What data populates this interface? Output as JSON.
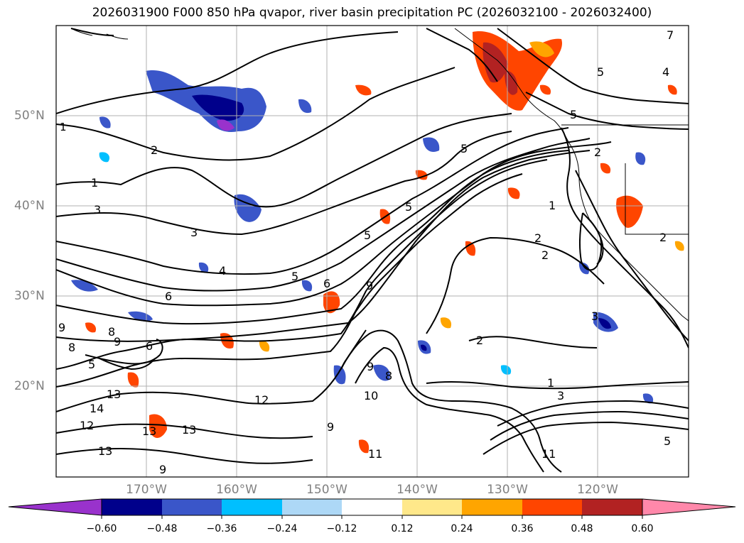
{
  "title": "2026031900 F000 850 hPa qvapor, river basin precipitation PC (2026032100 - 2026032400)",
  "map": {
    "lat_labels": [
      "50°N",
      "40°N",
      "30°N",
      "20°N"
    ],
    "lon_labels": [
      "170°W",
      "160°W",
      "150°W",
      "140°W",
      "130°W",
      "120°W"
    ],
    "contour_labels": [
      "1",
      "2",
      "1",
      "3",
      "3",
      "4",
      "5",
      "6",
      "5",
      "6",
      "9",
      "8",
      "9",
      "9",
      "8",
      "6",
      "5",
      "13",
      "14",
      "12",
      "13",
      "13",
      "12",
      "10",
      "11",
      "9",
      "8",
      "13",
      "9",
      "2",
      "2",
      "2",
      "2",
      "5",
      "5",
      "5",
      "1",
      "2",
      "3",
      "3",
      "5",
      "4",
      "1",
      "11",
      "9",
      "5",
      "7"
    ]
  },
  "colorbar": {
    "ticks": [
      "−0.60",
      "−0.48",
      "−0.36",
      "−0.24",
      "−0.12",
      "0.12",
      "0.24",
      "0.36",
      "0.48",
      "0.60"
    ],
    "colors": [
      "#9932cc",
      "#00008b",
      "#3a56c9",
      "#00bfff",
      "#add8f6",
      "#ffffff",
      "#ffe88a",
      "#ffa500",
      "#ff4500",
      "#b22222",
      "#ff88aa"
    ]
  }
}
